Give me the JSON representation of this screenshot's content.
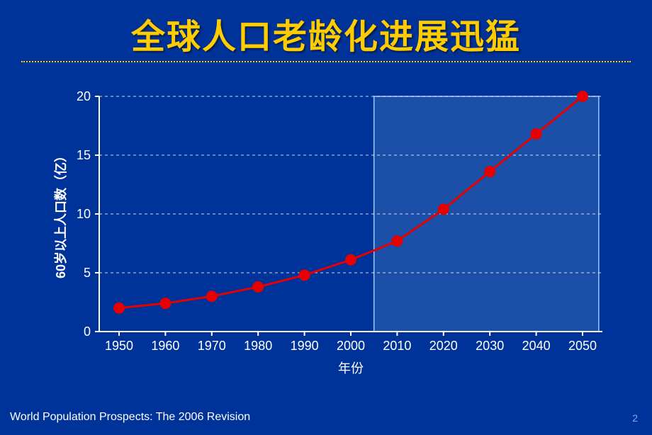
{
  "title": "全球人口老龄化进展迅猛",
  "source": "World Population Prospects: The 2006 Revision",
  "page_number": "2",
  "chart": {
    "type": "line",
    "x_label": "年份",
    "y_label": "60岁以上人口数（亿）",
    "x_categories": [
      "1950",
      "1960",
      "1970",
      "1980",
      "1990",
      "2000",
      "2010",
      "2020",
      "2030",
      "2040",
      "2050"
    ],
    "y_ticks": [
      0,
      5,
      10,
      15,
      20
    ],
    "y_lim": [
      0,
      20
    ],
    "values": [
      2.0,
      2.4,
      3.0,
      3.8,
      4.8,
      6.1,
      7.7,
      10.4,
      13.6,
      16.8,
      20.0
    ],
    "line_color": "#e60000",
    "line_width": 3,
    "marker_color": "#e60000",
    "marker_radius": 8,
    "grid_color": "#ffffff",
    "axis_color": "#ffffff",
    "background_color": "#003399",
    "highlight": {
      "x_start_index": 5.5,
      "x_end_index": 10.35,
      "fill": "#6699cc",
      "stroke": "#99ccff"
    },
    "tick_fontsize": 18,
    "label_fontsize": 18
  }
}
